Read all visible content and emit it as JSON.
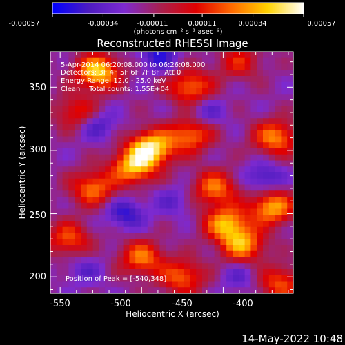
{
  "colorbar": {
    "tick_labels": [
      "-0.00057",
      "-0.00034",
      "-0.00011",
      "0.00011",
      "0.00034",
      "0.00057"
    ],
    "tick_values": [
      -0.00057,
      -0.00034,
      -0.00011,
      0.00011,
      0.00034,
      0.00057
    ],
    "range": [
      -0.00057,
      0.00057
    ],
    "units": "(photons cm⁻² s⁻¹ asec⁻²)",
    "colors": [
      "#0000ff",
      "#4c1bc0",
      "#7d2ad0",
      "#a82050",
      "#e00000",
      "#ff6a00",
      "#ffd200",
      "#ffffff"
    ]
  },
  "chart_data": {
    "type": "heatmap",
    "title": "Reconstructed RHESSI Image",
    "xlabel": "Heliocentric X (arcsec)",
    "ylabel": "Heliocentric Y (arcsec)",
    "xlim": [
      -556,
      -407
    ],
    "ylim": [
      187,
      378
    ],
    "x_ticks": [
      -550,
      -500,
      -450,
      -400
    ],
    "y_ticks": [
      200,
      250,
      300,
      350
    ],
    "x_tick_labels": [
      "-550",
      "-500",
      "-450",
      "-400"
    ],
    "y_tick_labels": [
      "200",
      "250",
      "300",
      "350"
    ],
    "annotations": [
      "5-Apr-2014 06:20:08.000 to 06:26:08.000",
      "Detectors: 3F 4F 5F 6F 7F 8F, Att 0",
      "Energy Range: 12.0 - 25.0 keV",
      "Clean    Total counts: 1.55E+04"
    ],
    "peak_label": "Position of Peak = [-540,348]",
    "peak": [
      -540,
      348
    ],
    "hotspots": [
      {
        "x": -527,
        "y": 362,
        "v": 1.0
      },
      {
        "x": -494,
        "y": 302,
        "v": 1.05
      },
      {
        "x": -505,
        "y": 287,
        "v": 0.9
      },
      {
        "x": -470,
        "y": 312,
        "v": 0.7
      },
      {
        "x": -448,
        "y": 242,
        "v": 0.85
      },
      {
        "x": -455,
        "y": 270,
        "v": 0.7
      },
      {
        "x": -438,
        "y": 225,
        "v": 0.8
      },
      {
        "x": -420,
        "y": 255,
        "v": 0.85
      },
      {
        "x": -418,
        "y": 310,
        "v": 0.75
      },
      {
        "x": -470,
        "y": 350,
        "v": 0.7
      },
      {
        "x": -530,
        "y": 270,
        "v": 0.7
      },
      {
        "x": -545,
        "y": 230,
        "v": 0.6
      },
      {
        "x": -500,
        "y": 215,
        "v": 0.7
      },
      {
        "x": -475,
        "y": 200,
        "v": 0.65
      },
      {
        "x": -540,
        "y": 330,
        "v": 0.5
      },
      {
        "x": -415,
        "y": 195,
        "v": 0.6
      },
      {
        "x": -440,
        "y": 370,
        "v": 0.45
      }
    ],
    "coldspots": [
      {
        "x": -510,
        "y": 250,
        "v": 0.55
      },
      {
        "x": -527,
        "y": 320,
        "v": 0.45
      },
      {
        "x": -490,
        "y": 375,
        "v": 0.55
      },
      {
        "x": -425,
        "y": 278,
        "v": 0.5
      },
      {
        "x": -460,
        "y": 330,
        "v": 0.35
      },
      {
        "x": -480,
        "y": 260,
        "v": 0.3
      },
      {
        "x": -535,
        "y": 205,
        "v": 0.3
      },
      {
        "x": -440,
        "y": 200,
        "v": 0.3
      }
    ]
  },
  "footer": {
    "timestamp": "14-May-2022 10:48"
  }
}
